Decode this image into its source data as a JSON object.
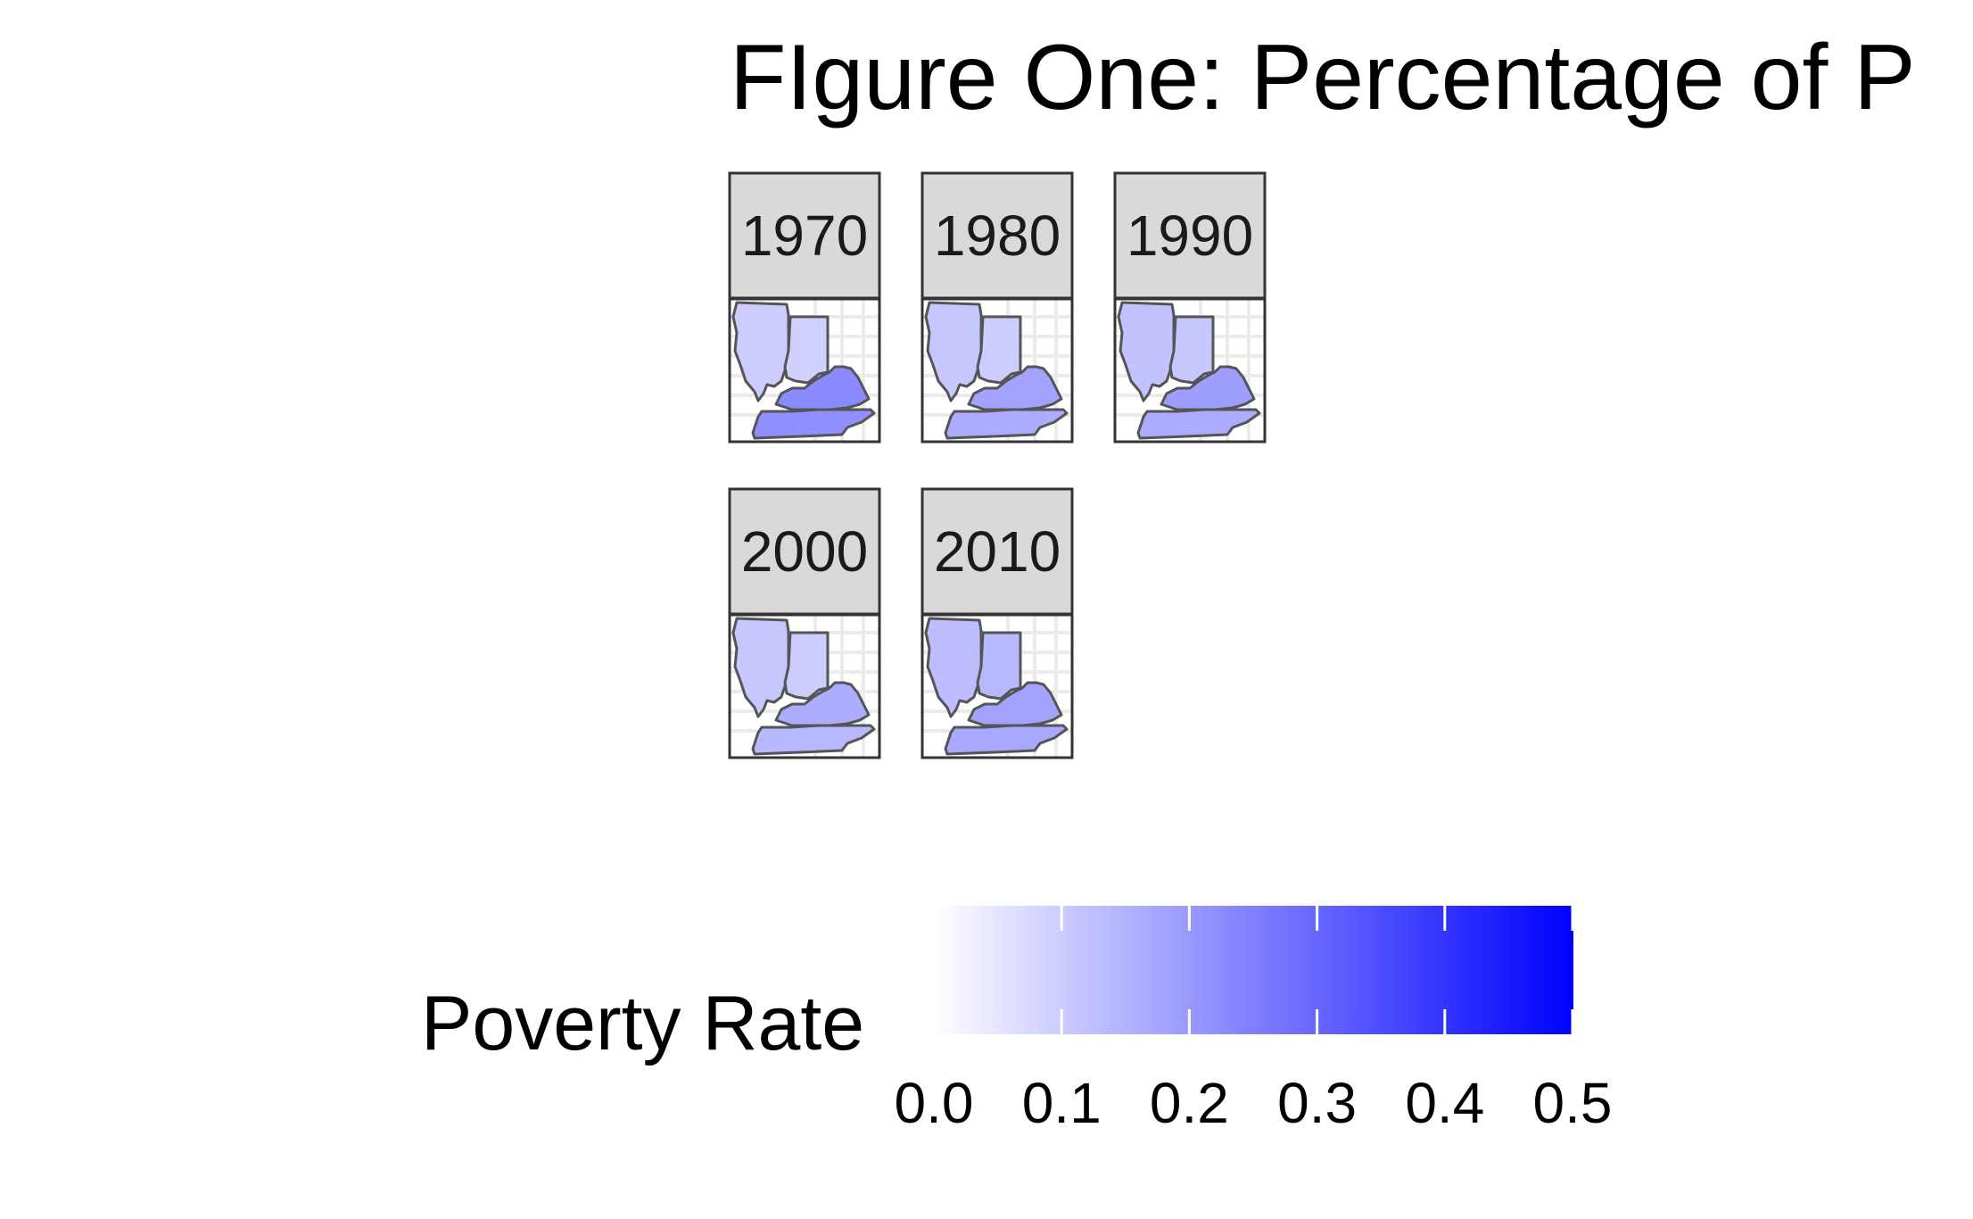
{
  "chart_data": {
    "type": "choropleth-facets",
    "title": "FIgure One: Percentage of P",
    "facets": [
      {
        "label": "1970",
        "regions": [
          {
            "name": "Illinois",
            "value": 0.1
          },
          {
            "name": "Indiana",
            "value": 0.09
          },
          {
            "name": "Kentucky",
            "value": 0.23
          },
          {
            "name": "Tennessee",
            "value": 0.22
          }
        ]
      },
      {
        "label": "1980",
        "regions": [
          {
            "name": "Illinois",
            "value": 0.11
          },
          {
            "name": "Indiana",
            "value": 0.1
          },
          {
            "name": "Kentucky",
            "value": 0.18
          },
          {
            "name": "Tennessee",
            "value": 0.16
          }
        ]
      },
      {
        "label": "1990",
        "regions": [
          {
            "name": "Illinois",
            "value": 0.12
          },
          {
            "name": "Indiana",
            "value": 0.11
          },
          {
            "name": "Kentucky",
            "value": 0.19
          },
          {
            "name": "Tennessee",
            "value": 0.16
          }
        ]
      },
      {
        "label": "2000",
        "regions": [
          {
            "name": "Illinois",
            "value": 0.11
          },
          {
            "name": "Indiana",
            "value": 0.1
          },
          {
            "name": "Kentucky",
            "value": 0.16
          },
          {
            "name": "Tennessee",
            "value": 0.14
          }
        ]
      },
      {
        "label": "2010",
        "regions": [
          {
            "name": "Illinois",
            "value": 0.13
          },
          {
            "name": "Indiana",
            "value": 0.14
          },
          {
            "name": "Kentucky",
            "value": 0.18
          },
          {
            "name": "Tennessee",
            "value": 0.17
          }
        ]
      }
    ],
    "legend": {
      "title": "Poverty Rate",
      "placement": "bottom",
      "ticks": [
        "0.0",
        "0.1",
        "0.2",
        "0.3",
        "0.4",
        "0.5"
      ],
      "range": [
        0,
        0.5
      ]
    },
    "colors": {
      "low": "#ffffff",
      "high": "#0000ff",
      "strip_fill": "#d9d9d9",
      "panel_border": "#333333",
      "state_border": "#555555",
      "grid": "#ebebeb"
    }
  }
}
